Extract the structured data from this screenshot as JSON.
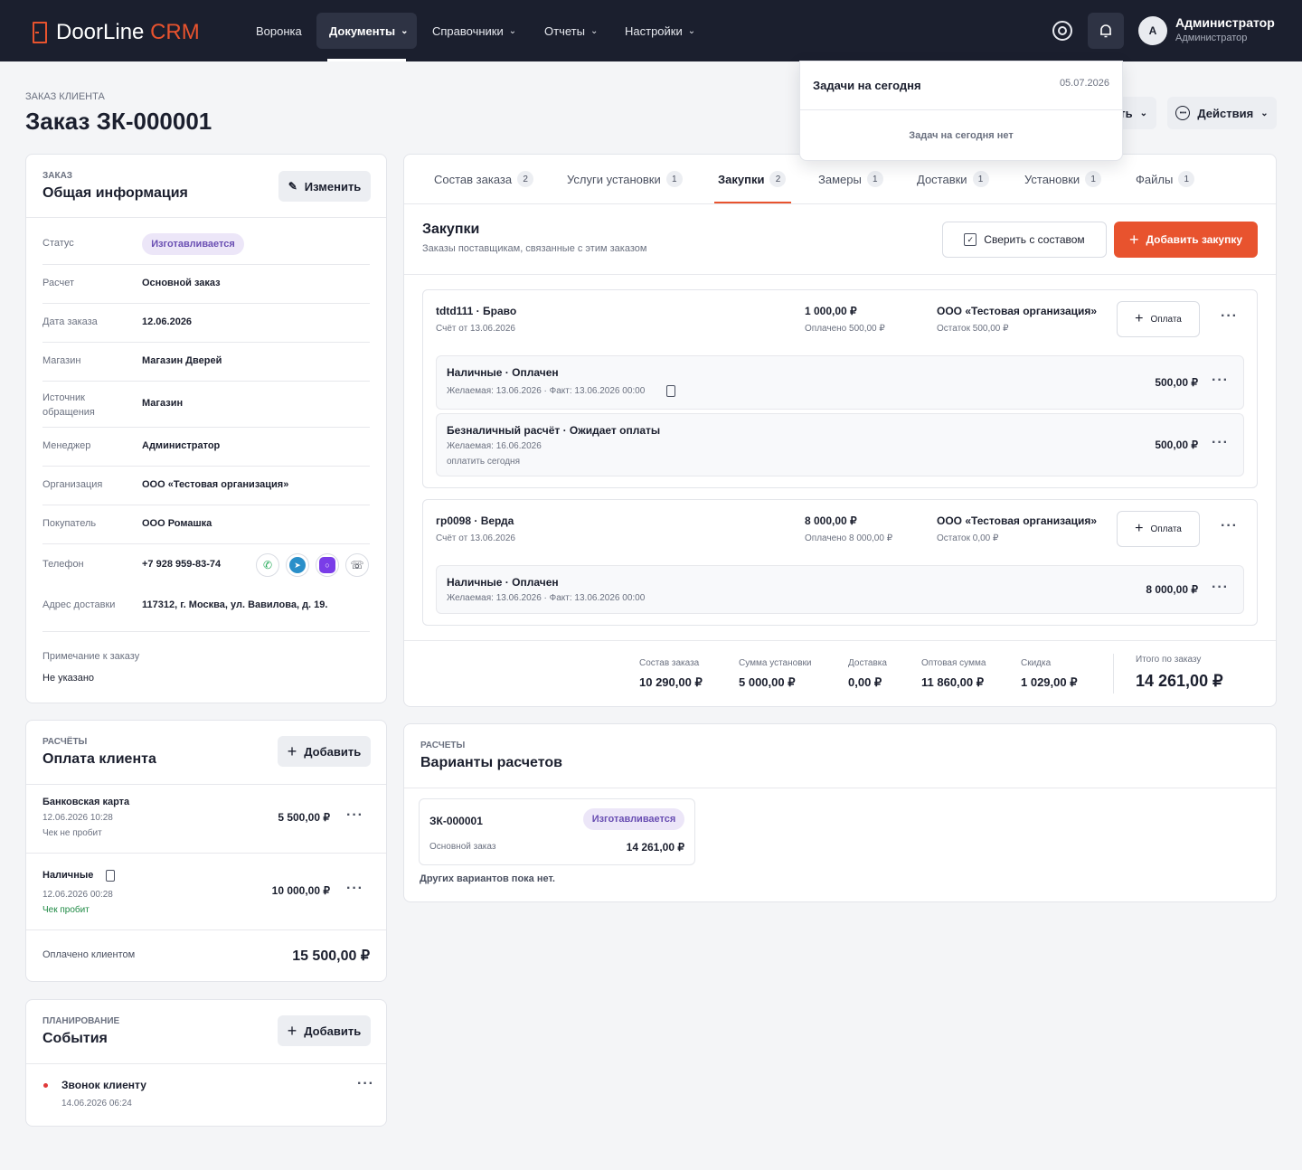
{
  "header": {
    "logo_main": "DoorLine",
    "logo_accent": "CRM",
    "nav": [
      "Воронка",
      "Документы",
      "Справочники",
      "Отчеты",
      "Настройки"
    ],
    "user_initial": "A",
    "user_name": "Администратор",
    "user_role": "Администратор"
  },
  "page": {
    "subtitle": "ЗАКАЗ КЛИЕНТА",
    "title": "Заказ ЗК-000001",
    "hidden_btn_fragment": "ть",
    "actions_label": "Действия"
  },
  "notifications": {
    "title": "Задачи на сегодня",
    "date": "05.07.2026",
    "empty": "Задач на сегодня нет"
  },
  "info": {
    "section": "ЗАКАЗ",
    "title": "Общая информация",
    "edit_label": "Изменить",
    "rows": [
      {
        "label": "Статус",
        "value": "Изготавливается"
      },
      {
        "label": "Расчет",
        "value": "Основной заказ"
      },
      {
        "label": "Дата заказа",
        "value": "12.06.2026"
      },
      {
        "label": "Магазин",
        "value": "Магазин Дверей"
      },
      {
        "label": "Источник обращения",
        "value": "Магазин"
      },
      {
        "label": "Менеджер",
        "value": "Администратор"
      },
      {
        "label": "Организация",
        "value": "ООО «Тестовая организация»"
      },
      {
        "label": "Покупатель",
        "value": "ООО Ромашка"
      },
      {
        "label": "Телефон",
        "value": "+7 928 959-83-74"
      },
      {
        "label": "Адрес доставки",
        "value": "117312, г. Москва, ул. Вавилова, д. 19."
      }
    ],
    "note_label": "Примечание к заказу",
    "note_value": "Не указано"
  },
  "payments": {
    "section": "РАСЧЁТЫ",
    "title": "Оплата клиента",
    "add_label": "Добавить",
    "items": [
      {
        "name": "Банковская карта",
        "date": "12.06.2026 10:28",
        "status": "Чек не пробит",
        "amount": "5 500,00 ₽"
      },
      {
        "name": "Наличные",
        "date": "12.06.2026 00:28",
        "status": "Чек пробит",
        "amount": "10 000,00 ₽"
      }
    ],
    "total_label": "Оплачено клиентом",
    "total_value": "15 500,00 ₽"
  },
  "events": {
    "section": "ПЛАНИРОВАНИЕ",
    "title": "События",
    "add_label": "Добавить",
    "items": [
      {
        "name": "Звонок клиенту",
        "date": "14.06.2026 06:24"
      }
    ]
  },
  "tabs": [
    {
      "label": "Состав заказа",
      "count": "2"
    },
    {
      "label": "Услуги установки",
      "count": "1"
    },
    {
      "label": "Закупки",
      "count": "2"
    },
    {
      "label": "Замеры",
      "count": "1"
    },
    {
      "label": "Доставки",
      "count": "1"
    },
    {
      "label": "Установки",
      "count": "1"
    },
    {
      "label": "Файлы",
      "count": "1"
    }
  ],
  "purchases": {
    "title": "Закупки",
    "subtitle": "Заказы поставщикам, связанные с этим заказом",
    "check_label": "Сверить с составом",
    "add_label": "Добавить закупку",
    "pay_label": "Оплата",
    "orders": [
      {
        "name": "tdtd111 · Браво",
        "invoice": "Счёт от 13.06.2026",
        "amount": "1 000,00 ₽",
        "paid": "Оплачено 500,00 ₽",
        "org": "ООО «Тестовая организация»",
        "rest": "Остаток 500,00 ₽",
        "payments": [
          {
            "title": "Наличные · Оплачен",
            "detail": "Желаемая: 13.06.2026 · Факт: 13.06.2026 00:00",
            "note": "",
            "amount": "500,00 ₽"
          },
          {
            "title": "Безналичный расчёт · Ожидает оплаты",
            "detail": "Желаемая: 16.06.2026",
            "note": "оплатить сегодня",
            "amount": "500,00 ₽"
          }
        ]
      },
      {
        "name": "гр0098 · Верда",
        "invoice": "Счёт от 13.06.2026",
        "amount": "8 000,00 ₽",
        "paid": "Оплачено 8 000,00 ₽",
        "org": "ООО «Тестовая организация»",
        "rest": "Остаток 0,00 ₽",
        "payments": [
          {
            "title": "Наличные · Оплачен",
            "detail": "Желаемая: 13.06.2026 · Факт: 13.06.2026 00:00",
            "note": "",
            "amount": "8 000,00 ₽"
          }
        ]
      }
    ]
  },
  "totals": [
    {
      "label": "Состав заказа",
      "value": "10 290,00 ₽"
    },
    {
      "label": "Сумма установки",
      "value": "5 000,00 ₽"
    },
    {
      "label": "Доставка",
      "value": "0,00 ₽"
    },
    {
      "label": "Оптовая сумма",
      "value": "11 860,00 ₽"
    },
    {
      "label": "Скидка",
      "value": "1 029,00 ₽"
    }
  ],
  "grand_total": {
    "label": "Итого по заказу",
    "value": "14 261,00 ₽"
  },
  "variants": {
    "section": "РАСЧЕТЫ",
    "title": "Варианты расчетов",
    "item_id": "ЗК-000001",
    "item_status": "Изготавливается",
    "item_type": "Основной заказ",
    "item_amount": "14 261,00 ₽",
    "empty_note": "Других вариантов пока нет."
  },
  "colors": {
    "header_bg": "#1b1f2e",
    "accent": "#e8532e",
    "status_bg": "#ece6f8",
    "status_text": "#6a4fb3"
  }
}
